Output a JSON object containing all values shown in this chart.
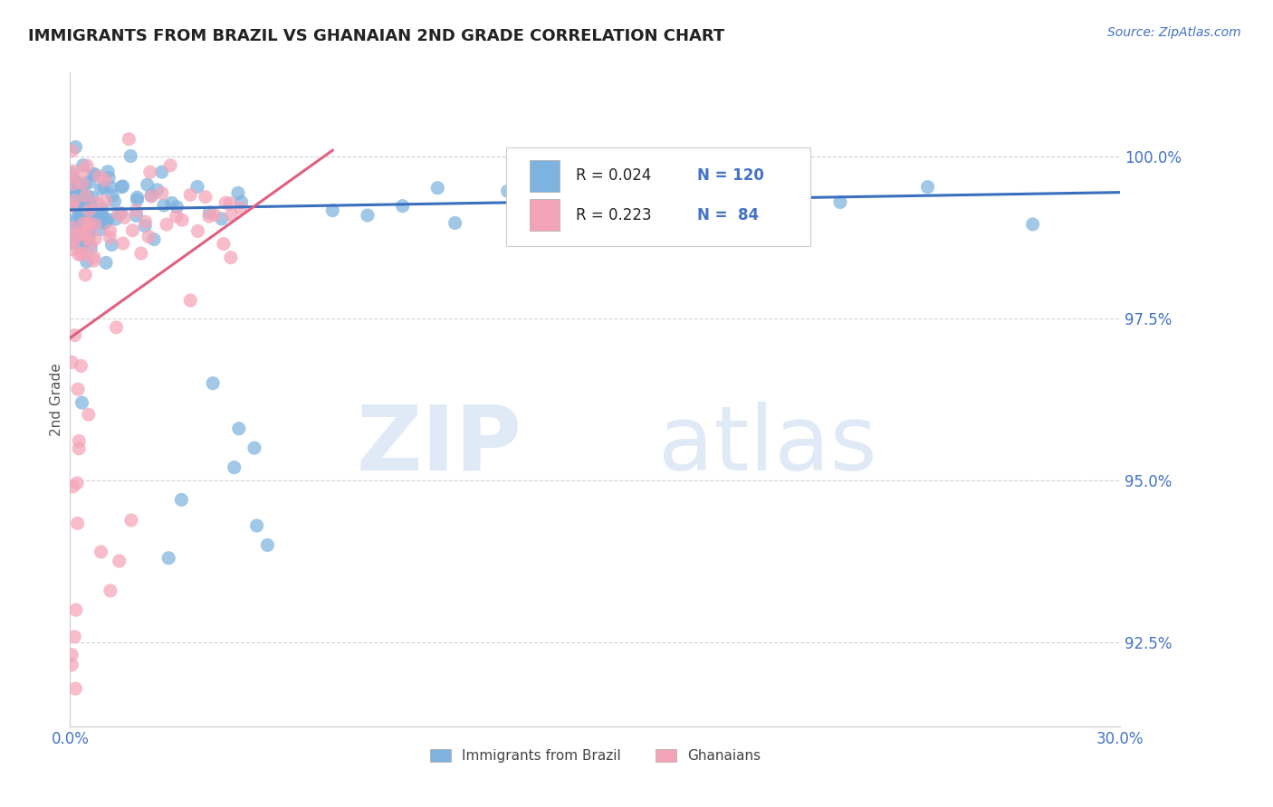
{
  "title": "IMMIGRANTS FROM BRAZIL VS GHANAIAN 2ND GRADE CORRELATION CHART",
  "source_text": "Source: ZipAtlas.com",
  "ylabel": "2nd Grade",
  "xlim": [
    0.0,
    30.0
  ],
  "ylim": [
    91.2,
    101.3
  ],
  "yticks": [
    92.5,
    95.0,
    97.5,
    100.0
  ],
  "ytick_labels": [
    "92.5%",
    "95.0%",
    "97.5%",
    "100.0%"
  ],
  "xticks": [
    0.0,
    30.0
  ],
  "xtick_labels": [
    "0.0%",
    "30.0%"
  ],
  "blue_color": "#7eb3e0",
  "pink_color": "#f4a4b8",
  "blue_line_color": "#3a6fbf",
  "pink_line_color": "#e06080",
  "legend_blue_r": "0.024",
  "legend_blue_n": "120",
  "legend_pink_r": "0.223",
  "legend_pink_n": "84",
  "legend_label_blue": "Immigrants from Brazil",
  "legend_label_pink": "Ghanaians",
  "title_color": "#222222",
  "axis_color": "#4472c4",
  "grid_color": "#c8c8c8",
  "background_color": "#ffffff",
  "blue_trend": [
    0.0,
    30.0,
    99.18,
    99.45
  ],
  "pink_trend": [
    0.0,
    7.5,
    97.2,
    100.1
  ]
}
